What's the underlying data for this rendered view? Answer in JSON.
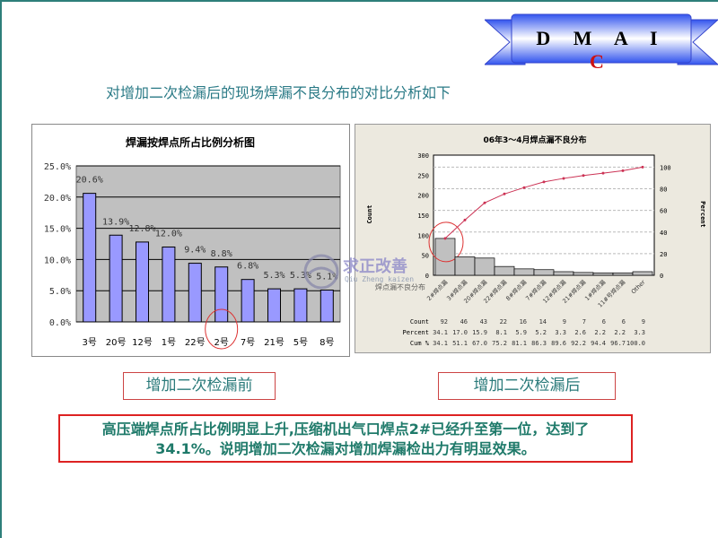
{
  "banner": {
    "letters": "D M A I ",
    "highlight": "C"
  },
  "slide_title": "对增加二次检漏后的现场焊漏不良分布的对比分析如下",
  "watermark": {
    "text": "求正改善",
    "pinyin": "Qiu Zheng kaizen",
    "caption": "焊点漏不良分布"
  },
  "chart_data": [
    {
      "type": "bar",
      "title": "焊漏按焊点所占比例分析图",
      "categories": [
        "3号",
        "20号",
        "12号",
        "1号",
        "22号",
        "2号",
        "7号",
        "21号",
        "5号",
        "8号"
      ],
      "values": [
        20.6,
        13.9,
        12.8,
        12.0,
        9.4,
        8.8,
        6.8,
        5.3,
        5.3,
        5.1
      ],
      "data_labels": [
        "20.6%",
        "13.9%",
        "12.8%",
        "12.0%",
        "9.4%",
        "8.8%",
        "6.8%",
        "5.3%",
        "5.3%",
        "5.1%"
      ],
      "yticks": [
        "0.0%",
        "5.0%",
        "10.0%",
        "15.0%",
        "20.0%",
        "25.0%"
      ],
      "ylim": [
        0,
        25
      ],
      "grid": true,
      "bar_color": "#9999ff",
      "plot_bg": "#c0c0c0",
      "highlight_category": "2号"
    },
    {
      "type": "pareto",
      "title": "06年3～4月焊点漏不良分布",
      "ylabel": "Count",
      "y2label": "Percent",
      "categories": [
        "2#焊点漏",
        "3#焊点漏",
        "20#焊点漏",
        "22#焊点漏",
        "8#焊点漏",
        "7#焊点漏",
        "12#焊点漏",
        "21#焊点漏",
        "1#焊点漏",
        "11#号焊点漏",
        "Other"
      ],
      "counts": [
        92,
        46,
        43,
        22,
        16,
        14,
        9,
        7,
        6,
        6,
        9
      ],
      "percent": [
        34.1,
        17.0,
        15.9,
        8.1,
        5.9,
        5.2,
        3.3,
        2.6,
        2.2,
        2.2,
        3.3
      ],
      "cum_percent": [
        34.1,
        51.1,
        67.0,
        75.2,
        81.1,
        86.3,
        89.6,
        92.2,
        94.4,
        96.7,
        100.0
      ],
      "yticks": [
        0,
        50,
        100,
        150,
        200,
        250,
        300
      ],
      "y2ticks": [
        0,
        20,
        40,
        60,
        80,
        100
      ],
      "ylim": [
        0,
        300
      ],
      "table_labels": [
        "Count",
        "Percent",
        "Cum %"
      ],
      "table_percent": [
        "34.1",
        "17.0",
        "15.9",
        "8.1",
        "5.9",
        "5.2",
        "3.3",
        "2.6",
        "2.2",
        "2.2",
        "3.3"
      ],
      "table_cum": [
        "34.1",
        "51.1",
        "67.0",
        "75.2",
        "81.1",
        "86.3",
        "89.6",
        "92.2",
        "94.4",
        "96.7",
        "100.0"
      ],
      "bar_color": "#c0c0c0",
      "line_color": "#cc3355",
      "highlight_category": "2#焊点漏"
    }
  ],
  "labels": {
    "before": "增加二次检漏前",
    "after": "增加二次检漏后"
  },
  "conclusion": {
    "line1": "高压端焊点所占比例明显上升,压缩机出气口焊点2#已经升至第一位，达到了",
    "line2": "34.1%。说明增加二次检漏对增加焊漏检出力有明显效果。"
  }
}
